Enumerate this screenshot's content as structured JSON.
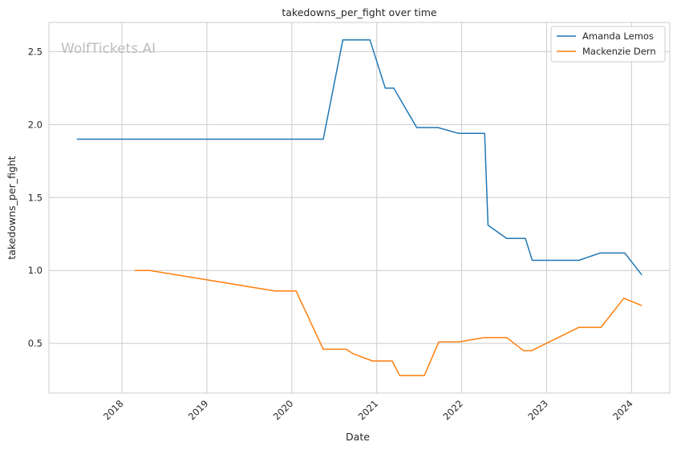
{
  "chart_data": {
    "type": "line",
    "title": "takedowns_per_fight over time",
    "xlabel": "Date",
    "ylabel": "takedowns_per_fight",
    "watermark": "WolfTickets.AI",
    "x_ticks": [
      "2018",
      "2019",
      "2020",
      "2021",
      "2022",
      "2023",
      "2024"
    ],
    "y_ticks": [
      "0.5",
      "1.0",
      "1.5",
      "2.0",
      "2.5"
    ],
    "xlim": [
      2017.14,
      2024.45
    ],
    "ylim": [
      0.16,
      2.7
    ],
    "grid": true,
    "legend_position": "top-right",
    "series": [
      {
        "name": "Amanda Lemos",
        "color": "#1f77b4",
        "points": [
          [
            2017.47,
            1.9
          ],
          [
            2020.37,
            1.9
          ],
          [
            2020.6,
            2.58
          ],
          [
            2020.92,
            2.58
          ],
          [
            2021.1,
            2.25
          ],
          [
            2021.2,
            2.25
          ],
          [
            2021.47,
            1.98
          ],
          [
            2021.72,
            1.98
          ],
          [
            2021.96,
            1.94
          ],
          [
            2022.27,
            1.94
          ],
          [
            2022.31,
            1.31
          ],
          [
            2022.53,
            1.22
          ],
          [
            2022.75,
            1.22
          ],
          [
            2022.83,
            1.07
          ],
          [
            2023.38,
            1.07
          ],
          [
            2023.63,
            1.12
          ],
          [
            2023.92,
            1.12
          ],
          [
            2024.12,
            0.97
          ]
        ]
      },
      {
        "name": "Mackenzie Dern",
        "color": "#ff7f0e",
        "points": [
          [
            2018.15,
            1.0
          ],
          [
            2018.33,
            1.0
          ],
          [
            2019.8,
            0.86
          ],
          [
            2020.05,
            0.86
          ],
          [
            2020.37,
            0.46
          ],
          [
            2020.64,
            0.46
          ],
          [
            2020.72,
            0.43
          ],
          [
            2020.95,
            0.38
          ],
          [
            2021.18,
            0.38
          ],
          [
            2021.27,
            0.28
          ],
          [
            2021.56,
            0.28
          ],
          [
            2021.73,
            0.51
          ],
          [
            2021.97,
            0.51
          ],
          [
            2022.26,
            0.54
          ],
          [
            2022.53,
            0.54
          ],
          [
            2022.73,
            0.45
          ],
          [
            2022.82,
            0.45
          ],
          [
            2023.38,
            0.61
          ],
          [
            2023.64,
            0.61
          ],
          [
            2023.91,
            0.81
          ],
          [
            2024.12,
            0.76
          ]
        ]
      }
    ]
  }
}
